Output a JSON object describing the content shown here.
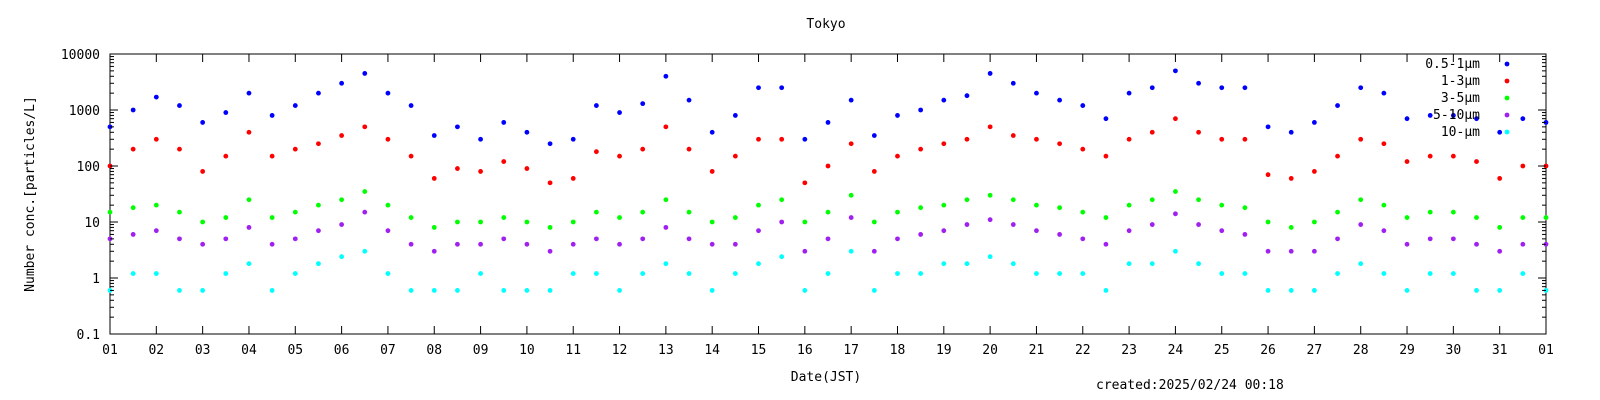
{
  "chart_data": {
    "type": "scatter",
    "title": "Tokyo",
    "xlabel": "Date(JST)",
    "ylabel": "Number conc.[particles/L]",
    "y_scale": "log",
    "ylim": [
      0.1,
      10000
    ],
    "xlim": [
      1,
      32
    ],
    "y_ticks": [
      "0.1",
      "1",
      "10",
      "100",
      "1000",
      "10000"
    ],
    "x_ticks": [
      "01",
      "02",
      "03",
      "04",
      "05",
      "06",
      "07",
      "08",
      "09",
      "10",
      "11",
      "12",
      "13",
      "14",
      "15",
      "16",
      "17",
      "18",
      "19",
      "20",
      "21",
      "22",
      "23",
      "24",
      "25",
      "26",
      "27",
      "28",
      "29",
      "30",
      "31",
      "01"
    ],
    "grid": false,
    "legend_position": "top-right",
    "series": [
      {
        "name": "0.5-1μm",
        "color": "#0000ff",
        "x": [
          1.0,
          1.5,
          2.0,
          2.5,
          3.0,
          3.5,
          4.0,
          4.5,
          5.0,
          5.5,
          6.0,
          6.5,
          7.0,
          7.5,
          8.0,
          8.5,
          9.0,
          9.5,
          10.0,
          10.5,
          11.0,
          11.5,
          12.0,
          12.5,
          13.0,
          13.5,
          14.0,
          14.5,
          15.0,
          15.5,
          16.0,
          16.5,
          17.0,
          17.5,
          18.0,
          18.5,
          19.0,
          19.5,
          20.0,
          20.5,
          21.0,
          21.5,
          22.0,
          22.5,
          23.0,
          23.5,
          24.0,
          24.5,
          25.0,
          25.5,
          26.0,
          26.5,
          27.0,
          27.5,
          28.0,
          28.5,
          29.0,
          29.5,
          30.0,
          30.5,
          31.0,
          31.5,
          32.0
        ],
        "values": [
          500,
          1000,
          1700,
          1200,
          600,
          900,
          2000,
          800,
          1200,
          2000,
          3000,
          4500,
          2000,
          1200,
          350,
          500,
          300,
          600,
          400,
          250,
          300,
          1200,
          900,
          1300,
          4000,
          1500,
          400,
          800,
          2500,
          2500,
          300,
          600,
          1500,
          350,
          800,
          1000,
          1500,
          1800,
          4500,
          3000,
          2000,
          1500,
          1200,
          700,
          2000,
          2500,
          5000,
          3000,
          2500,
          2500,
          500,
          400,
          600,
          1200,
          2500,
          2000,
          700,
          800,
          800,
          700,
          400,
          700,
          600
        ]
      },
      {
        "name": "1-3μm",
        "color": "#ff0000",
        "x": [
          1.0,
          1.5,
          2.0,
          2.5,
          3.0,
          3.5,
          4.0,
          4.5,
          5.0,
          5.5,
          6.0,
          6.5,
          7.0,
          7.5,
          8.0,
          8.5,
          9.0,
          9.5,
          10.0,
          10.5,
          11.0,
          11.5,
          12.0,
          12.5,
          13.0,
          13.5,
          14.0,
          14.5,
          15.0,
          15.5,
          16.0,
          16.5,
          17.0,
          17.5,
          18.0,
          18.5,
          19.0,
          19.5,
          20.0,
          20.5,
          21.0,
          21.5,
          22.0,
          22.5,
          23.0,
          23.5,
          24.0,
          24.5,
          25.0,
          25.5,
          26.0,
          26.5,
          27.0,
          27.5,
          28.0,
          28.5,
          29.0,
          29.5,
          30.0,
          30.5,
          31.0,
          31.5,
          32.0
        ],
        "values": [
          100,
          200,
          300,
          200,
          80,
          150,
          400,
          150,
          200,
          250,
          350,
          500,
          300,
          150,
          60,
          90,
          80,
          120,
          90,
          50,
          60,
          180,
          150,
          200,
          500,
          200,
          80,
          150,
          300,
          300,
          50,
          100,
          250,
          80,
          150,
          200,
          250,
          300,
          500,
          350,
          300,
          250,
          200,
          150,
          300,
          400,
          700,
          400,
          300,
          300,
          70,
          60,
          80,
          150,
          300,
          250,
          120,
          150,
          150,
          120,
          60,
          100,
          100
        ]
      },
      {
        "name": "3-5μm",
        "color": "#00ff00",
        "x": [
          1.0,
          1.5,
          2.0,
          2.5,
          3.0,
          3.5,
          4.0,
          4.5,
          5.0,
          5.5,
          6.0,
          6.5,
          7.0,
          7.5,
          8.0,
          8.5,
          9.0,
          9.5,
          10.0,
          10.5,
          11.0,
          11.5,
          12.0,
          12.5,
          13.0,
          13.5,
          14.0,
          14.5,
          15.0,
          15.5,
          16.0,
          16.5,
          17.0,
          17.5,
          18.0,
          18.5,
          19.0,
          19.5,
          20.0,
          20.5,
          21.0,
          21.5,
          22.0,
          22.5,
          23.0,
          23.5,
          24.0,
          24.5,
          25.0,
          25.5,
          26.0,
          26.5,
          27.0,
          27.5,
          28.0,
          28.5,
          29.0,
          29.5,
          30.0,
          30.5,
          31.0,
          31.5,
          32.0
        ],
        "values": [
          15,
          18,
          20,
          15,
          10,
          12,
          25,
          12,
          15,
          20,
          25,
          35,
          20,
          12,
          8,
          10,
          10,
          12,
          10,
          8,
          10,
          15,
          12,
          15,
          25,
          15,
          10,
          12,
          20,
          25,
          10,
          15,
          30,
          10,
          15,
          18,
          20,
          25,
          30,
          25,
          20,
          18,
          15,
          12,
          20,
          25,
          35,
          25,
          20,
          18,
          10,
          8,
          10,
          15,
          25,
          20,
          12,
          15,
          15,
          12,
          8,
          12,
          12
        ]
      },
      {
        "name": "5-10μm",
        "color": "#a020f0",
        "x": [
          1.0,
          1.5,
          2.0,
          2.5,
          3.0,
          3.5,
          4.0,
          4.5,
          5.0,
          5.5,
          6.0,
          6.5,
          7.0,
          7.5,
          8.0,
          8.5,
          9.0,
          9.5,
          10.0,
          10.5,
          11.0,
          11.5,
          12.0,
          12.5,
          13.0,
          13.5,
          14.0,
          14.5,
          15.0,
          15.5,
          16.0,
          16.5,
          17.0,
          17.5,
          18.0,
          18.5,
          19.0,
          19.5,
          20.0,
          20.5,
          21.0,
          21.5,
          22.0,
          22.5,
          23.0,
          23.5,
          24.0,
          24.5,
          25.0,
          25.5,
          26.0,
          26.5,
          27.0,
          27.5,
          28.0,
          28.5,
          29.0,
          29.5,
          30.0,
          30.5,
          31.0,
          31.5,
          32.0
        ],
        "values": [
          5,
          6,
          7,
          5,
          4,
          5,
          8,
          4,
          5,
          7,
          9,
          15,
          7,
          4,
          3,
          4,
          4,
          5,
          4,
          3,
          4,
          5,
          4,
          5,
          8,
          5,
          4,
          4,
          7,
          10,
          3,
          5,
          12,
          3,
          5,
          6,
          7,
          9,
          11,
          9,
          7,
          6,
          5,
          4,
          7,
          9,
          14,
          9,
          7,
          6,
          3,
          3,
          3,
          5,
          9,
          7,
          4,
          5,
          5,
          4,
          3,
          4,
          4
        ]
      },
      {
        "name": "10-μm",
        "color": "#00ffff",
        "x": [
          1.0,
          1.5,
          2.0,
          2.5,
          3.0,
          3.5,
          4.0,
          4.5,
          5.0,
          5.5,
          6.0,
          6.5,
          7.0,
          7.5,
          8.0,
          8.5,
          9.0,
          9.5,
          10.0,
          10.5,
          11.0,
          11.5,
          12.0,
          12.5,
          13.0,
          13.5,
          14.0,
          14.5,
          15.0,
          15.5,
          16.0,
          16.5,
          17.0,
          17.5,
          18.0,
          18.5,
          19.0,
          19.5,
          20.0,
          20.5,
          21.0,
          21.5,
          22.0,
          22.5,
          23.0,
          23.5,
          24.0,
          24.5,
          25.0,
          25.5,
          26.0,
          26.5,
          27.0,
          27.5,
          28.0,
          28.5,
          29.0,
          29.5,
          30.0,
          30.5,
          31.0,
          31.5,
          32.0
        ],
        "values": [
          0.6,
          1.2,
          1.2,
          0.6,
          0.6,
          1.2,
          1.8,
          0.6,
          1.2,
          1.8,
          2.4,
          3.0,
          1.2,
          0.6,
          0.6,
          0.6,
          1.2,
          0.6,
          0.6,
          0.6,
          1.2,
          1.2,
          0.6,
          1.2,
          1.8,
          1.2,
          0.6,
          1.2,
          1.8,
          2.4,
          0.6,
          1.2,
          3.0,
          0.6,
          1.2,
          1.2,
          1.8,
          1.8,
          2.4,
          1.8,
          1.2,
          1.2,
          1.2,
          0.6,
          1.8,
          1.8,
          3.0,
          1.8,
          1.2,
          1.2,
          0.6,
          0.6,
          0.6,
          1.2,
          1.8,
          1.2,
          0.6,
          1.2,
          1.2,
          0.6,
          0.6,
          1.2,
          0.6
        ]
      }
    ],
    "created_text": "created:2025/02/24 00:18"
  }
}
